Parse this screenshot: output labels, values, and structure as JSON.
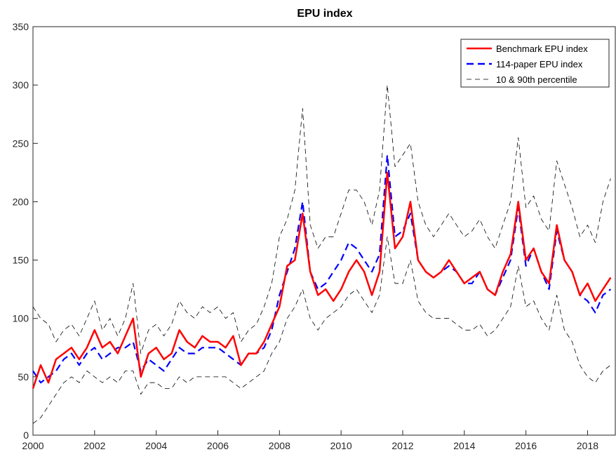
{
  "chart_data": {
    "type": "line",
    "title": "EPU index",
    "x": [
      2000,
      2000.25,
      2000.5,
      2000.75,
      2001,
      2001.25,
      2001.5,
      2001.75,
      2002,
      2002.25,
      2002.5,
      2002.75,
      2003,
      2003.25,
      2003.5,
      2003.75,
      2004,
      2004.25,
      2004.5,
      2004.75,
      2005,
      2005.25,
      2005.5,
      2005.75,
      2006,
      2006.25,
      2006.5,
      2006.75,
      2007,
      2007.25,
      2007.5,
      2007.75,
      2008,
      2008.25,
      2008.5,
      2008.75,
      2009,
      2009.25,
      2009.5,
      2009.75,
      2010,
      2010.25,
      2010.5,
      2010.75,
      2011,
      2011.25,
      2011.5,
      2011.75,
      2012,
      2012.25,
      2012.5,
      2012.75,
      2013,
      2013.25,
      2013.5,
      2013.75,
      2014,
      2014.25,
      2014.5,
      2014.75,
      2015,
      2015.25,
      2015.5,
      2015.75,
      2016,
      2016.25,
      2016.5,
      2016.75,
      2017,
      2017.25,
      2017.5,
      2017.75,
      2018,
      2018.25,
      2018.5,
      2018.75
    ],
    "series": [
      {
        "name": "Benchmark EPU index",
        "color": "#ff0000",
        "dash": "none",
        "values": [
          40,
          60,
          45,
          65,
          70,
          75,
          65,
          75,
          90,
          75,
          80,
          70,
          85,
          100,
          50,
          70,
          75,
          65,
          70,
          90,
          80,
          75,
          85,
          80,
          80,
          75,
          85,
          60,
          70,
          70,
          80,
          95,
          110,
          145,
          150,
          190,
          140,
          120,
          125,
          115,
          125,
          140,
          150,
          140,
          120,
          140,
          225,
          160,
          170,
          200,
          150,
          140,
          135,
          140,
          150,
          140,
          130,
          135,
          140,
          125,
          120,
          140,
          155,
          200,
          150,
          160,
          140,
          130,
          180,
          150,
          140,
          120,
          130,
          115,
          125,
          135
        ]
      },
      {
        "name": "114-paper EPU index",
        "color": "#0000ff",
        "dash": "10 6",
        "values": [
          55,
          45,
          50,
          55,
          65,
          70,
          60,
          70,
          75,
          65,
          70,
          75,
          75,
          80,
          55,
          65,
          60,
          55,
          65,
          75,
          70,
          70,
          75,
          75,
          75,
          70,
          65,
          60,
          70,
          70,
          75,
          90,
          120,
          140,
          160,
          200,
          140,
          125,
          130,
          140,
          150,
          165,
          160,
          150,
          140,
          155,
          240,
          170,
          175,
          190,
          150,
          140,
          135,
          140,
          145,
          140,
          130,
          130,
          140,
          125,
          120,
          135,
          150,
          195,
          145,
          160,
          140,
          125,
          175,
          150,
          140,
          120,
          115,
          105,
          120,
          125
        ]
      },
      {
        "name": "10 & 90th percentile",
        "color": "#000000",
        "dash": "7 5",
        "low": [
          10,
          15,
          25,
          35,
          45,
          50,
          45,
          55,
          50,
          45,
          50,
          45,
          55,
          55,
          35,
          45,
          45,
          40,
          40,
          50,
          45,
          50,
          50,
          50,
          50,
          50,
          45,
          40,
          45,
          50,
          55,
          70,
          80,
          100,
          110,
          125,
          100,
          90,
          100,
          105,
          110,
          120,
          125,
          115,
          105,
          120,
          170,
          130,
          130,
          150,
          115,
          105,
          100,
          100,
          100,
          95,
          90,
          90,
          95,
          85,
          90,
          100,
          110,
          145,
          110,
          115,
          100,
          90,
          120,
          90,
          80,
          60,
          50,
          45,
          55,
          60
        ],
        "high": [
          110,
          100,
          95,
          80,
          90,
          95,
          85,
          100,
          115,
          90,
          100,
          85,
          100,
          130,
          70,
          90,
          95,
          85,
          95,
          115,
          105,
          100,
          110,
          105,
          110,
          100,
          105,
          80,
          90,
          95,
          110,
          130,
          170,
          185,
          210,
          280,
          180,
          160,
          170,
          170,
          190,
          210,
          210,
          200,
          180,
          210,
          300,
          230,
          240,
          250,
          200,
          180,
          170,
          180,
          190,
          180,
          170,
          175,
          185,
          170,
          160,
          180,
          200,
          255,
          195,
          205,
          185,
          175,
          235,
          215,
          195,
          170,
          180,
          165,
          200,
          220
        ]
      }
    ],
    "xlim": [
      2000,
      2018.9
    ],
    "xticks": [
      2000,
      2002,
      2004,
      2006,
      2008,
      2010,
      2012,
      2014,
      2016,
      2018
    ],
    "ylim": [
      0,
      350
    ],
    "yticks": [
      0,
      50,
      100,
      150,
      200,
      250,
      300,
      350
    ],
    "legend": "upper right"
  }
}
